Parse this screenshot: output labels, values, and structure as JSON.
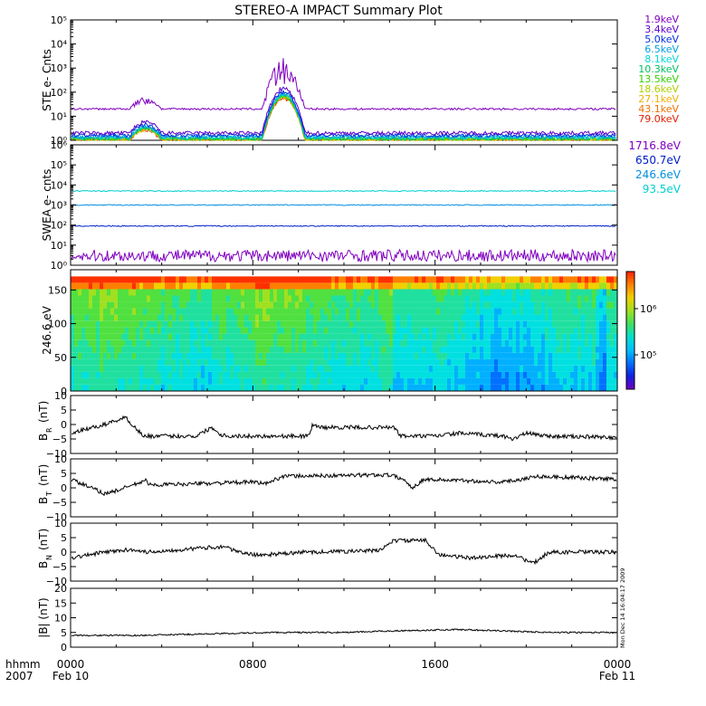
{
  "title": "STEREO-A IMPACT Summary Plot",
  "footer": {
    "left_top": "hhmm",
    "left_bottom": "2007",
    "x_ticks": [
      "0000",
      "0800",
      "1600",
      "0000"
    ],
    "date_start": "Feb 10",
    "date_end": "Feb 11",
    "stamp": "Mon Dec 14 16:04:17 2009"
  },
  "chart_data": [
    {
      "type": "line",
      "panel": "ste",
      "ylabel": "STE e- Cnts",
      "yscale": "log",
      "ylim": [
        1,
        100000
      ],
      "y_ticks": [
        "10⁰",
        "10¹",
        "10²",
        "10³",
        "10⁴",
        "10⁵"
      ],
      "x_unit": "hours since 0000 Feb 10",
      "xlim": [
        0,
        24
      ],
      "series": [
        {
          "name": "1.9keV",
          "color": "#8000c0",
          "level": 20
        },
        {
          "name": "3.4keV",
          "color": "#5a00c8",
          "level": 2
        },
        {
          "name": "5.0keV",
          "color": "#0030e0",
          "level": 1.6
        },
        {
          "name": "6.5keV",
          "color": "#00a0e0",
          "level": 1.4
        },
        {
          "name": "8.1keV",
          "color": "#00d8d8",
          "level": 1.3
        },
        {
          "name": "10.3keV",
          "color": "#00c060",
          "level": 1.2
        },
        {
          "name": "13.5keV",
          "color": "#30d000",
          "level": 1.15
        },
        {
          "name": "18.6keV",
          "color": "#b0d000",
          "level": 1.1
        },
        {
          "name": "27.1keV",
          "color": "#f0b000",
          "level": 1.05
        },
        {
          "name": "43.1keV",
          "color": "#f07000",
          "level": 1.02
        },
        {
          "name": "79.0keV",
          "color": "#e02000",
          "level": 1.0
        }
      ],
      "events": [
        {
          "x_start": 2.6,
          "x_end": 4.0,
          "peak": 5
        },
        {
          "x_start": 8.4,
          "x_end": 10.3,
          "peak": 200
        }
      ]
    },
    {
      "type": "line",
      "panel": "swea",
      "ylabel": "SWEA e- cnts",
      "yscale": "log",
      "ylim": [
        1,
        1000000
      ],
      "y_ticks": [
        "10⁰",
        "10¹",
        "10²",
        "10³",
        "10⁴",
        "10⁵",
        "10⁶"
      ],
      "xlim": [
        0,
        24
      ],
      "series": [
        {
          "name": "1716.8eV",
          "color": "#8000c0",
          "level": 3
        },
        {
          "name": "650.7eV",
          "color": "#0020c8",
          "level": 90
        },
        {
          "name": "246.6eV",
          "color": "#0090e0",
          "level": 1000
        },
        {
          "name": "93.5eV",
          "color": "#00d0d0",
          "level": 5000
        }
      ]
    },
    {
      "type": "heatmap",
      "panel": "pad",
      "ylabel": "246.6 eV",
      "ylim": [
        0,
        180
      ],
      "y_ticks": [
        "0",
        "50",
        "100",
        "150"
      ],
      "colorbar_ticks": [
        "10⁶",
        "10⁵"
      ],
      "colorbar_values": [
        1000000,
        100000
      ],
      "xlim": [
        0,
        24
      ]
    },
    {
      "type": "line",
      "panel": "br",
      "ylabel_main": "B",
      "ylabel_sub": "R",
      "ylabel_unit": "(nT)",
      "ylim": [
        -10,
        10
      ],
      "y_ticks": [
        "10",
        "5",
        "0",
        "−5",
        "−10"
      ],
      "segments": [
        [
          0,
          -3
        ],
        [
          1.5,
          0
        ],
        [
          2.4,
          2.5
        ],
        [
          3.2,
          -4
        ],
        [
          5.5,
          -4
        ],
        [
          6.2,
          -1
        ],
        [
          6.6,
          -3.5
        ],
        [
          7,
          -4
        ],
        [
          8.2,
          -4
        ],
        [
          10.5,
          -4
        ],
        [
          10.6,
          0
        ],
        [
          11,
          -1
        ],
        [
          14.2,
          -1
        ],
        [
          14.5,
          -4
        ],
        [
          16,
          -4
        ],
        [
          17,
          -3
        ],
        [
          19,
          -4
        ],
        [
          19.4,
          -5
        ],
        [
          20,
          -3
        ],
        [
          21,
          -4
        ],
        [
          24,
          -4.5
        ]
      ]
    },
    {
      "type": "line",
      "panel": "bt",
      "ylabel_main": "B",
      "ylabel_sub": "T",
      "ylabel_unit": "(nT)",
      "ylim": [
        -10,
        10
      ],
      "y_ticks": [
        "10",
        "5",
        "0",
        "−5",
        "−10"
      ],
      "segments": [
        [
          0,
          3
        ],
        [
          1.5,
          -2
        ],
        [
          2,
          -1
        ],
        [
          3.3,
          2.5
        ],
        [
          3.5,
          1
        ],
        [
          8,
          2
        ],
        [
          8.6,
          1.5
        ],
        [
          9.3,
          4
        ],
        [
          14,
          4.5
        ],
        [
          14.6,
          3
        ],
        [
          15,
          0
        ],
        [
          15.5,
          3
        ],
        [
          19,
          2
        ],
        [
          20.5,
          4
        ],
        [
          24,
          3
        ]
      ]
    },
    {
      "type": "line",
      "panel": "bn",
      "ylabel_main": "B",
      "ylabel_sub": "N",
      "ylabel_unit": "(nT)",
      "ylim": [
        -10,
        10
      ],
      "y_ticks": [
        "10",
        "5",
        "0",
        "−5",
        "−10"
      ],
      "segments": [
        [
          0,
          -2
        ],
        [
          1.5,
          0
        ],
        [
          2.8,
          1
        ],
        [
          3.3,
          0
        ],
        [
          6.8,
          2
        ],
        [
          7.3,
          0
        ],
        [
          8.2,
          -1
        ],
        [
          9.5,
          -0.5
        ],
        [
          10.2,
          0
        ],
        [
          13.5,
          0.5
        ],
        [
          14.2,
          4
        ],
        [
          15.6,
          4
        ],
        [
          16.2,
          -1
        ],
        [
          17.5,
          -2
        ],
        [
          19.5,
          -1
        ],
        [
          20.3,
          -4
        ],
        [
          21,
          0
        ],
        [
          24,
          0
        ]
      ]
    },
    {
      "type": "line",
      "panel": "bmag",
      "ylabel_main": "|B| (nT)",
      "ylim": [
        0,
        20
      ],
      "y_ticks": [
        "20",
        "15",
        "10",
        "5",
        "0"
      ],
      "segments": [
        [
          0,
          4
        ],
        [
          3,
          4
        ],
        [
          6,
          4.5
        ],
        [
          9,
          5
        ],
        [
          12,
          5
        ],
        [
          14,
          5.5
        ],
        [
          17,
          6
        ],
        [
          19,
          5.5
        ],
        [
          21,
          5
        ],
        [
          24,
          5
        ]
      ]
    }
  ]
}
